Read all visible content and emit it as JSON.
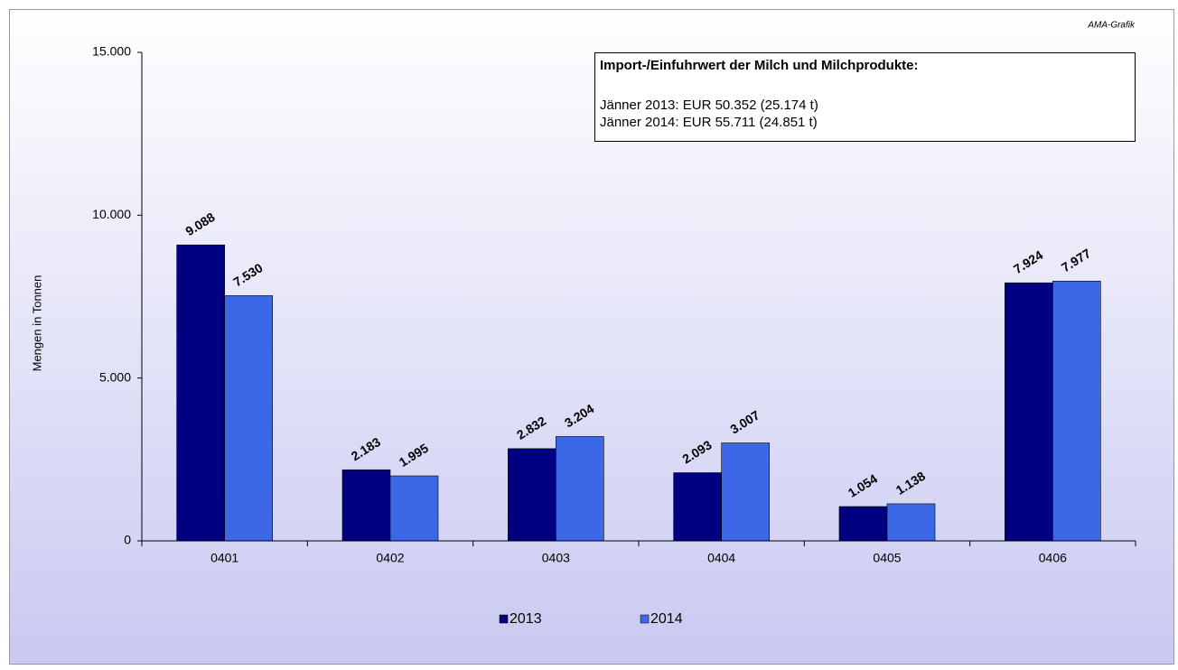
{
  "chart_data": {
    "type": "bar",
    "source": "AMA-Grafik",
    "ylabel": "Mengen in Tonnen",
    "annotation": {
      "title": "Import-/Einfuhrwert der Milch und Milchprodukte:",
      "lines": [
        "Jänner 2013: EUR 50.352 (25.174 t)",
        "Jänner 2014: EUR 55.711 (24.851 t)"
      ]
    },
    "categories": [
      "0401",
      "0402",
      "0403",
      "0404",
      "0405",
      "0406"
    ],
    "series": [
      {
        "name": "2013",
        "color": "#000080",
        "values": [
          9088,
          2183,
          2832,
          2093,
          1054,
          7924
        ],
        "value_labels": [
          "9.088",
          "2.183",
          "2.832",
          "2.093",
          "1.054",
          "7.924"
        ]
      },
      {
        "name": "2014",
        "color": "#3c68e8",
        "values": [
          7530,
          1995,
          3204,
          3007,
          1138,
          7977
        ],
        "value_labels": [
          "7.530",
          "1.995",
          "3.204",
          "3.007",
          "1.138",
          "7.977"
        ]
      }
    ],
    "ylim": [
      0,
      15000
    ],
    "yticks": [
      0,
      {
        "value": 5000,
        "label": "5.000"
      },
      {
        "value": 10000,
        "label": "10.000"
      },
      {
        "value": 15000,
        "label": "15.000"
      }
    ],
    "grid": false,
    "legend": "bottom"
  }
}
